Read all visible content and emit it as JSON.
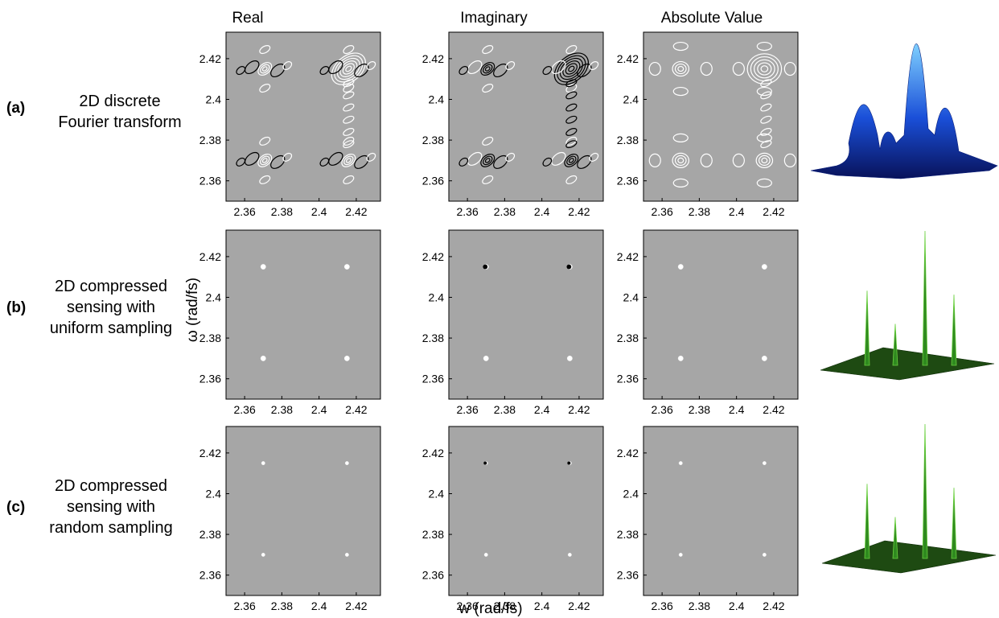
{
  "columns": [
    "Real",
    "Imaginary",
    "Absolute Value"
  ],
  "rows": [
    {
      "tag": "(a)",
      "label": [
        "2D discrete",
        "Fourier transform"
      ]
    },
    {
      "tag": "(b)",
      "label": [
        "2D compressed",
        "sensing with",
        "uniform sampling"
      ]
    },
    {
      "tag": "(c)",
      "label": [
        "2D compressed",
        "sensing with",
        "random sampling"
      ]
    }
  ],
  "colors": {
    "plot_background": "#a6a6a6",
    "positive_contour": "#ffffff",
    "negative_contour": "#000000",
    "surface_a": "#1a4fd8",
    "surface_bc": "#2f8a1f"
  },
  "chart_data": {
    "type": "contour",
    "xlabel": "w (rad/fs)",
    "ylabel": "ω (rad/fs)",
    "xlim": [
      2.35,
      2.433
    ],
    "ylim": [
      2.35,
      2.433
    ],
    "xticks": [
      "2.36",
      "2.38",
      "2.4",
      "2.42"
    ],
    "yticks": [
      "2.42",
      "2.4",
      "2.38",
      "2.36"
    ],
    "peaks": [
      {
        "x": 2.37,
        "y": 2.415
      },
      {
        "x": 2.415,
        "y": 2.415
      },
      {
        "x": 2.37,
        "y": 2.37
      },
      {
        "x": 2.415,
        "y": 2.37
      }
    ],
    "peak_heights_relative": [
      0.55,
      1.0,
      0.3,
      0.52
    ]
  }
}
